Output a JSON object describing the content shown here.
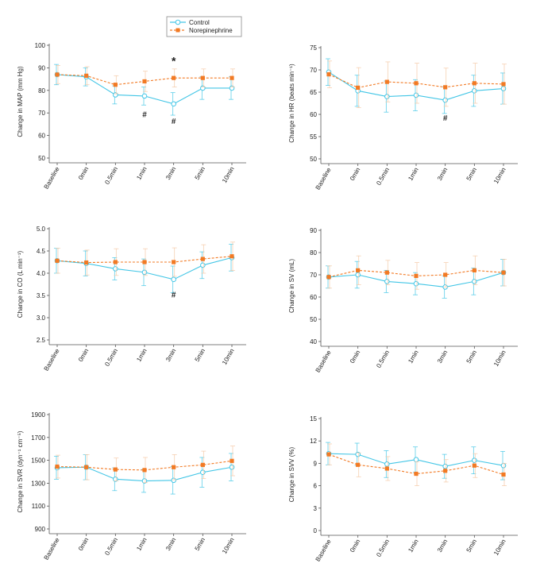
{
  "legend": {
    "entries": [
      {
        "name": "Control",
        "color": "#43c6e6",
        "marker": "open-circle",
        "line": "solid"
      },
      {
        "name": "Norepinephrine",
        "color": "#f27a24",
        "marker": "filled-square",
        "line": "dashed"
      }
    ]
  },
  "colors": {
    "control": "#43c6e6",
    "norepinephrine": "#f27a24",
    "axis": "#555555",
    "errorbar": "#f5c9a6"
  },
  "chart_data": [
    {
      "id": "map",
      "type": "line",
      "ylabel": "Change in MAP (mm Hg)",
      "categories": [
        "Baseline",
        "0min",
        "0.5min",
        "1min",
        "3min",
        "5min",
        "10min"
      ],
      "ylim": [
        50,
        100
      ],
      "yticks": [
        50,
        60,
        70,
        80,
        90,
        100
      ],
      "series": [
        {
          "name": "Control",
          "values": [
            87,
            86,
            78,
            77.5,
            74,
            81,
            81
          ],
          "errors": [
            4.5,
            4,
            4,
            4,
            5,
            5,
            5
          ]
        },
        {
          "name": "Norepinephrine",
          "values": [
            87,
            86.5,
            82.5,
            84,
            85.5,
            85.5,
            85.5
          ],
          "errors": [
            4,
            4,
            4,
            4.5,
            4,
            4,
            4
          ]
        }
      ],
      "annotations": [
        {
          "text": "*",
          "category": "3min",
          "y": 93.5
        },
        {
          "text": "#",
          "category": "1min",
          "y": 69.5
        },
        {
          "text": "#",
          "category": "3min",
          "y": 66.5
        }
      ]
    },
    {
      "id": "hr",
      "type": "line",
      "ylabel": "Change in HR (beats min⁻¹)",
      "categories": [
        "Baseline",
        "0min",
        "0.5min",
        "1min",
        "3min",
        "5min",
        "10min"
      ],
      "ylim": [
        50,
        75
      ],
      "yticks": [
        50,
        55,
        60,
        65,
        70,
        75
      ],
      "series": [
        {
          "name": "Control",
          "values": [
            69.5,
            65.3,
            64,
            64.3,
            63.2,
            65.3,
            65.8
          ],
          "errors": [
            3,
            3.5,
            3.5,
            3.5,
            3,
            3.5,
            3.5
          ]
        },
        {
          "name": "Norepinephrine",
          "values": [
            69,
            66,
            67.3,
            67,
            66.1,
            67,
            66.8
          ],
          "errors": [
            3,
            4.5,
            4.5,
            4.5,
            4.3,
            4.5,
            4.5
          ]
        }
      ],
      "annotations": [
        {
          "text": "#",
          "category": "3min",
          "y": 59.3
        }
      ]
    },
    {
      "id": "co",
      "type": "line",
      "ylabel": "Change in CO (L min⁻¹)",
      "categories": [
        "Baseline",
        "0min",
        "0.5min",
        "1min",
        "3min",
        "5min",
        "10min"
      ],
      "ylim": [
        2.5,
        5.0
      ],
      "yticks": [
        2.5,
        3.0,
        3.5,
        4.0,
        4.5,
        5.0
      ],
      "tick_decimals": 1,
      "series": [
        {
          "name": "Control",
          "values": [
            4.28,
            4.22,
            4.1,
            4.02,
            3.86,
            4.18,
            4.35
          ],
          "errors": [
            0.28,
            0.28,
            0.25,
            0.3,
            0.3,
            0.3,
            0.3
          ]
        },
        {
          "name": "Norepinephrine",
          "values": [
            4.28,
            4.24,
            4.25,
            4.25,
            4.25,
            4.32,
            4.38
          ],
          "errors": [
            0.28,
            0.28,
            0.3,
            0.3,
            0.32,
            0.32,
            0.32
          ]
        }
      ],
      "annotations": [
        {
          "text": "#",
          "category": "3min",
          "y": 3.53
        }
      ]
    },
    {
      "id": "sv",
      "type": "line",
      "ylabel": "Change in SV (mL)",
      "categories": [
        "Baseline",
        "0min",
        "0.5min",
        "1min",
        "3min",
        "5min",
        "10min"
      ],
      "ylim": [
        40,
        90
      ],
      "yticks": [
        40,
        50,
        60,
        70,
        80,
        90
      ],
      "series": [
        {
          "name": "Control",
          "values": [
            69,
            70,
            67,
            66,
            64.5,
            67,
            71
          ],
          "errors": [
            5,
            6,
            5,
            5,
            5,
            6,
            6
          ]
        },
        {
          "name": "Norepinephrine",
          "values": [
            69,
            72,
            71,
            69.5,
            70,
            72,
            71
          ],
          "errors": [
            5,
            6.5,
            5.5,
            6,
            5.5,
            6.5,
            6
          ]
        }
      ],
      "annotations": []
    },
    {
      "id": "svr",
      "type": "line",
      "ylabel": "Change in SVR (dyn⁻¹ cm⁻⁵)",
      "categories": [
        "Baseline",
        "0min",
        "0.5min",
        "1min",
        "3min",
        "5min",
        "10min"
      ],
      "ylim": [
        900,
        1900
      ],
      "yticks": [
        900,
        1100,
        1300,
        1500,
        1700,
        1900
      ],
      "series": [
        {
          "name": "Control",
          "values": [
            1435,
            1440,
            1335,
            1320,
            1325,
            1395,
            1440
          ],
          "errors": [
            100,
            110,
            100,
            100,
            120,
            130,
            120
          ]
        },
        {
          "name": "Norepinephrine",
          "values": [
            1445,
            1440,
            1420,
            1415,
            1440,
            1460,
            1495
          ],
          "errors": [
            100,
            110,
            100,
            110,
            110,
            120,
            130
          ]
        }
      ],
      "annotations": []
    },
    {
      "id": "svv",
      "type": "line",
      "ylabel": "Change in SVV (%)",
      "categories": [
        "Baseline",
        "0min",
        "0.5min",
        "1min",
        "3min",
        "5min",
        "10min"
      ],
      "ylim": [
        0,
        15
      ],
      "yticks": [
        0,
        3,
        6,
        9,
        12,
        15
      ],
      "series": [
        {
          "name": "Control",
          "values": [
            10.3,
            10.2,
            8.9,
            9.5,
            8.6,
            9.4,
            8.7
          ],
          "errors": [
            1.5,
            1.5,
            1.8,
            1.7,
            1.6,
            1.8,
            1.9
          ]
        },
        {
          "name": "Norepinephrine",
          "values": [
            10.2,
            8.8,
            8.3,
            7.6,
            8.0,
            8.7,
            7.5
          ],
          "errors": [
            1.4,
            1.6,
            1.6,
            1.6,
            1.5,
            1.6,
            1.5
          ]
        }
      ],
      "annotations": []
    }
  ]
}
